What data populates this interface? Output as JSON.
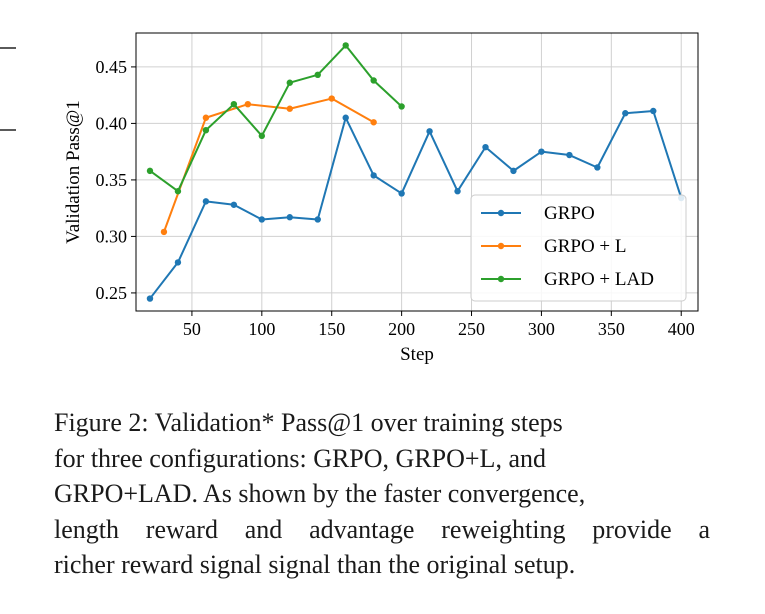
{
  "chart_data": {
    "type": "line",
    "xlabel": "Step",
    "ylabel": "Validation Pass@1",
    "xlim": [
      10,
      412
    ],
    "ylim": [
      0.234,
      0.48
    ],
    "xticks": [
      50,
      100,
      150,
      200,
      250,
      300,
      350,
      400
    ],
    "yticks": [
      0.25,
      0.3,
      0.35,
      0.4,
      0.45
    ],
    "ytick_labels": [
      "0.25",
      "0.30",
      "0.35",
      "0.40",
      "0.45"
    ],
    "grid": true,
    "legend_position": "lower-right",
    "series": [
      {
        "name": "GRPO",
        "color": "#1f77b4",
        "x": [
          20,
          40,
          60,
          80,
          100,
          120,
          140,
          160,
          180,
          200,
          220,
          240,
          260,
          280,
          300,
          320,
          340,
          360,
          380,
          400
        ],
        "y": [
          0.245,
          0.277,
          0.331,
          0.328,
          0.315,
          0.317,
          0.315,
          0.405,
          0.354,
          0.338,
          0.393,
          0.34,
          0.379,
          0.358,
          0.375,
          0.372,
          0.361,
          0.409,
          0.411,
          0.334
        ]
      },
      {
        "name": "GRPO + L",
        "color": "#ff7f0e",
        "x": [
          30,
          60,
          90,
          120,
          150,
          180
        ],
        "y": [
          0.304,
          0.405,
          0.417,
          0.413,
          0.422,
          0.401
        ]
      },
      {
        "name": "GRPO + LAD",
        "color": "#2ca02c",
        "x": [
          20,
          40,
          60,
          80,
          100,
          120,
          140,
          160,
          180,
          200
        ],
        "y": [
          0.358,
          0.34,
          0.394,
          0.417,
          0.389,
          0.436,
          0.443,
          0.469,
          0.438,
          0.415
        ]
      }
    ]
  },
  "caption": {
    "line1": "Figure 2:  Validation* Pass@1 over training steps",
    "line2": "for three configurations:  GRPO, GRPO+L, and",
    "line3": "GRPO+LAD. As shown by the faster convergence,",
    "line4": "length reward and advantage reweighting provide a",
    "line5": "richer reward signal signal than the original setup."
  }
}
